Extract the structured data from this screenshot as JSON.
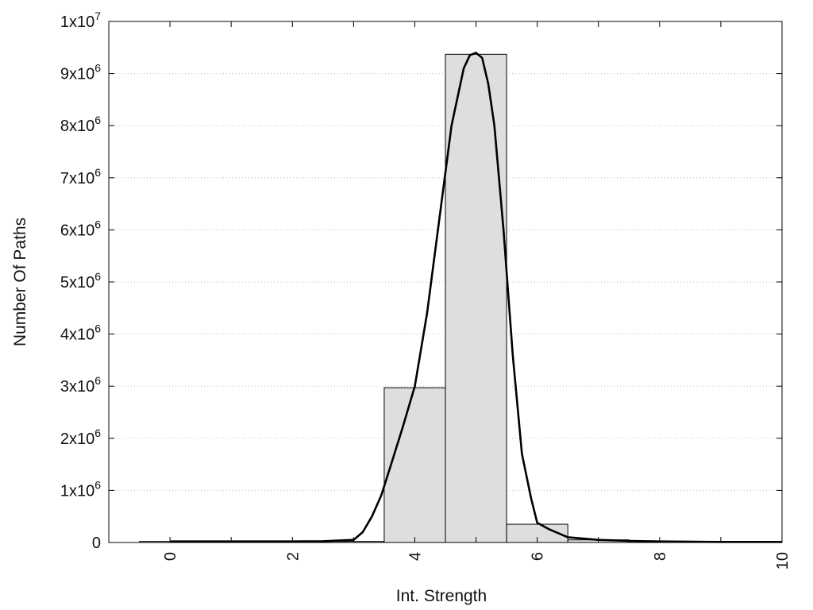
{
  "chart_data": {
    "type": "bar",
    "xlabel": "Int. Strength",
    "ylabel": "Number Of Paths",
    "xlim": [
      -1,
      10
    ],
    "ylim": [
      0,
      10000000
    ],
    "x_ticks": [
      0,
      2,
      4,
      6,
      8,
      10
    ],
    "x_tick_labels": [
      "0",
      "2",
      "4",
      "6",
      "8",
      "10"
    ],
    "y_ticks": [
      {
        "value": 0,
        "base": "0",
        "exp": ""
      },
      {
        "value": 1000000,
        "base": "1x10",
        "exp": "6"
      },
      {
        "value": 2000000,
        "base": "2x10",
        "exp": "6"
      },
      {
        "value": 3000000,
        "base": "3x10",
        "exp": "6"
      },
      {
        "value": 4000000,
        "base": "4x10",
        "exp": "6"
      },
      {
        "value": 5000000,
        "base": "5x10",
        "exp": "6"
      },
      {
        "value": 6000000,
        "base": "6x10",
        "exp": "6"
      },
      {
        "value": 7000000,
        "base": "7x10",
        "exp": "6"
      },
      {
        "value": 8000000,
        "base": "8x10",
        "exp": "6"
      },
      {
        "value": 9000000,
        "base": "9x10",
        "exp": "6"
      },
      {
        "value": 10000000,
        "base": "1x10",
        "exp": "7"
      }
    ],
    "grid": "horizontal-dotted",
    "bin_width": 1,
    "bins": [
      {
        "center": 0,
        "value": 20000
      },
      {
        "center": 1,
        "value": 20000
      },
      {
        "center": 2,
        "value": 20000
      },
      {
        "center": 3,
        "value": 20000
      },
      {
        "center": 4,
        "value": 2970000
      },
      {
        "center": 5,
        "value": 9370000
      },
      {
        "center": 6,
        "value": 350000
      },
      {
        "center": 7,
        "value": 50000
      },
      {
        "center": 8,
        "value": 20000
      },
      {
        "center": 9,
        "value": 10000
      }
    ],
    "curve": {
      "x": [
        0,
        1,
        2,
        2.5,
        3,
        3.15,
        3.3,
        3.45,
        3.6,
        3.8,
        4,
        4.2,
        4.4,
        4.6,
        4.8,
        4.9,
        5,
        5.1,
        5.2,
        5.3,
        5.45,
        5.6,
        5.75,
        5.9,
        6,
        6.2,
        6.5,
        7,
        7.5,
        8,
        9,
        10
      ],
      "y": [
        20000,
        20000,
        20000,
        25000,
        50000,
        200000,
        500000,
        900000,
        1450000,
        2200000,
        3000000,
        4400000,
        6200000,
        8000000,
        9100000,
        9350000,
        9400000,
        9300000,
        8800000,
        8000000,
        6000000,
        3600000,
        1700000,
        850000,
        380000,
        250000,
        100000,
        50000,
        30000,
        20000,
        10000,
        10000
      ]
    },
    "bar_fill": "#dedede",
    "bar_stroke": "#000000",
    "curve_color": "#000000"
  }
}
